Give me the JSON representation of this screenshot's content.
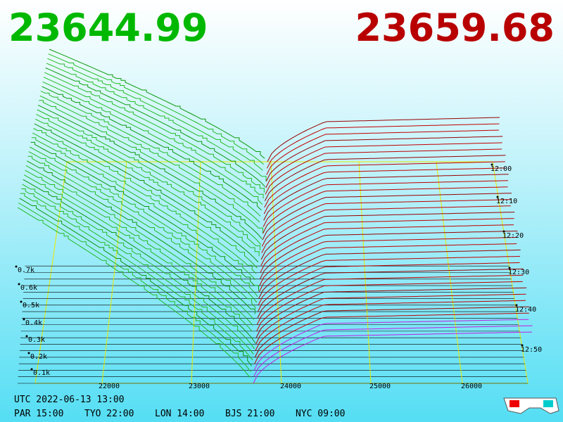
{
  "header": {
    "bid": "23644.99",
    "ask": "23659.68"
  },
  "price_axis": [
    "22000",
    "23000",
    "24000",
    "25000",
    "26000"
  ],
  "volume_axis": [
    "0.7k",
    "0.6k",
    "0.5k",
    "0.4k",
    "0.3k",
    "0.2k",
    "0.1k"
  ],
  "time_axis": [
    "12:00",
    "12:10",
    "12:20",
    "12:30",
    "12:40",
    "12:50"
  ],
  "footer": {
    "utc": "UTC 2022-06-13 13:00",
    "cities": [
      "PAR 15:00",
      "TYO 22:00",
      "LON 14:00",
      "BJS 21:00",
      "NYC 09:00"
    ]
  }
}
